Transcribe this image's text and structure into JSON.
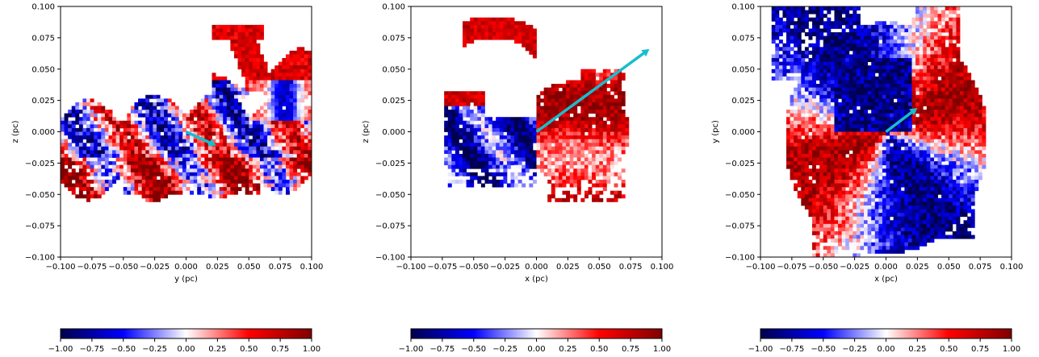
{
  "chart_data": [
    {
      "type": "heatmap",
      "xlabel": "y (pc)",
      "ylabel": "z (pc)",
      "xlim": [
        -0.1,
        0.1
      ],
      "ylim": [
        -0.1,
        0.1
      ],
      "xticks": [
        "−0.100",
        "−0.075",
        "−0.050",
        "−0.025",
        "0.000",
        "0.025",
        "0.050",
        "0.075",
        "0.100"
      ],
      "yticks": [
        "0.100",
        "0.075",
        "0.050",
        "0.025",
        "0.000",
        "−0.025",
        "−0.050",
        "−0.075",
        "−0.100"
      ],
      "arrow": {
        "x0": 0.0,
        "y0": 0.0,
        "x1": 0.024,
        "y1": -0.011,
        "color": "#17becf"
      },
      "colorbar": {
        "vmin": -1.0,
        "vmax": 1.0,
        "cmap": "seismic",
        "ticks": [
          "−1.00",
          "−0.75",
          "−0.50",
          "−0.25",
          "0.00",
          "0.25",
          "0.50",
          "0.75",
          "1.00"
        ]
      }
    },
    {
      "type": "heatmap",
      "xlabel": "x (pc)",
      "ylabel": "z (pc)",
      "xlim": [
        -0.1,
        0.1
      ],
      "ylim": [
        -0.1,
        0.1
      ],
      "xticks": [
        "−0.100",
        "−0.075",
        "−0.050",
        "−0.025",
        "0.000",
        "0.025",
        "0.050",
        "0.075",
        "0.100"
      ],
      "yticks": [
        "0.100",
        "0.075",
        "0.050",
        "0.025",
        "0.000",
        "−0.025",
        "−0.050",
        "−0.075",
        "−0.100"
      ],
      "arrow": {
        "x0": 0.0,
        "y0": 0.0,
        "x1": 0.09,
        "y1": 0.066,
        "color": "#17becf"
      },
      "colorbar": {
        "vmin": -1.0,
        "vmax": 1.0,
        "cmap": "seismic",
        "ticks": [
          "−1.00",
          "−0.75",
          "−0.50",
          "−0.25",
          "0.00",
          "0.25",
          "0.50",
          "0.75",
          "1.00"
        ]
      }
    },
    {
      "type": "heatmap",
      "xlabel": "x (pc)",
      "ylabel": "y (pc)",
      "xlim": [
        -0.1,
        0.1
      ],
      "ylim": [
        -0.1,
        0.1
      ],
      "xticks": [
        "−0.100",
        "−0.075",
        "−0.050",
        "−0.025",
        "0.000",
        "0.025",
        "0.050",
        "0.075",
        "0.100"
      ],
      "yticks": [
        "0.100",
        "0.075",
        "0.050",
        "0.025",
        "0.000",
        "−0.025",
        "−0.050",
        "−0.075",
        "−0.100"
      ],
      "arrow": {
        "x0": 0.0,
        "y0": 0.0,
        "x1": 0.025,
        "y1": 0.019,
        "color": "#17becf"
      },
      "colorbar": {
        "vmin": -1.0,
        "vmax": 1.0,
        "cmap": "seismic",
        "ticks": [
          "−1.00",
          "−0.75",
          "−0.50",
          "−0.25",
          "0.00",
          "0.25",
          "0.50",
          "0.75",
          "1.00"
        ]
      }
    }
  ]
}
